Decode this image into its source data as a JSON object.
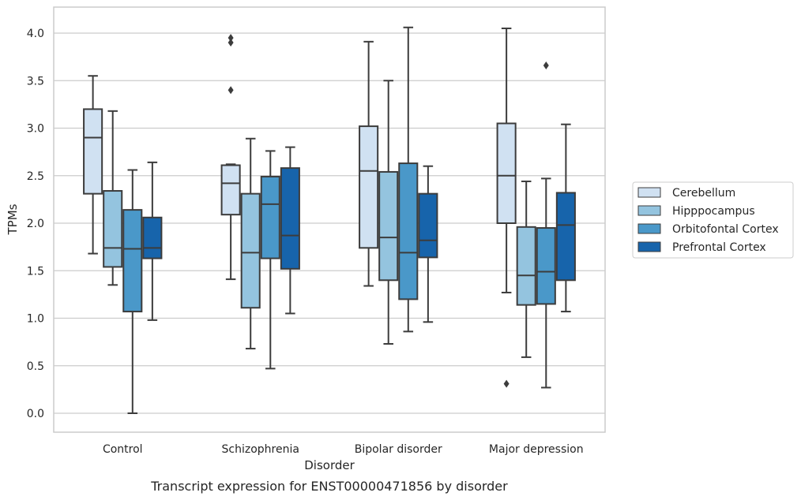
{
  "chart_data": {
    "type": "box",
    "categories": [
      "Control",
      "Schizophrenia",
      "Bipolar disorder",
      "Major depression"
    ],
    "xlabel": "Disorder",
    "ylabel": "TPMs",
    "caption": "Transcript expression for ENST00000471856 by disorder",
    "ylim": [
      -0.2,
      4.27
    ],
    "yticks": [
      "0.0",
      "0.5",
      "1.0",
      "1.5",
      "2.0",
      "2.5",
      "3.0",
      "3.5",
      "4.0"
    ],
    "grid": true,
    "legend_position": "right",
    "series": [
      {
        "name": "Cerebellum",
        "color": "#d0e1f2",
        "boxes": [
          {
            "whisker_low": 1.68,
            "q1": 2.31,
            "median": 2.9,
            "q3": 3.2,
            "whisker_high": 3.55,
            "outliers": []
          },
          {
            "whisker_low": 1.41,
            "q1": 2.09,
            "median": 2.42,
            "q3": 2.61,
            "whisker_high": 2.62,
            "outliers": [
              3.95,
              3.9,
              3.4
            ]
          },
          {
            "whisker_low": 1.34,
            "q1": 1.74,
            "median": 2.55,
            "q3": 3.02,
            "whisker_high": 3.91,
            "outliers": []
          },
          {
            "whisker_low": 1.27,
            "q1": 2.0,
            "median": 2.5,
            "q3": 3.05,
            "whisker_high": 4.05,
            "outliers": [
              0.31
            ]
          }
        ]
      },
      {
        "name": "Hipppocampus",
        "color": "#94c4df",
        "boxes": [
          {
            "whisker_low": 1.35,
            "q1": 1.54,
            "median": 1.74,
            "q3": 2.34,
            "whisker_high": 3.18,
            "outliers": []
          },
          {
            "whisker_low": 0.68,
            "q1": 1.11,
            "median": 1.69,
            "q3": 2.31,
            "whisker_high": 2.89,
            "outliers": []
          },
          {
            "whisker_low": 0.73,
            "q1": 1.4,
            "median": 1.85,
            "q3": 2.54,
            "whisker_high": 3.5,
            "outliers": []
          },
          {
            "whisker_low": 0.59,
            "q1": 1.14,
            "median": 1.45,
            "q3": 1.96,
            "whisker_high": 2.44,
            "outliers": []
          }
        ]
      },
      {
        "name": "Orbitofontal Cortex",
        "color": "#4a98c9",
        "boxes": [
          {
            "whisker_low": 0.0,
            "q1": 1.07,
            "median": 1.73,
            "q3": 2.14,
            "whisker_high": 2.56,
            "outliers": []
          },
          {
            "whisker_low": 0.47,
            "q1": 1.63,
            "median": 2.2,
            "q3": 2.49,
            "whisker_high": 2.76,
            "outliers": []
          },
          {
            "whisker_low": 0.86,
            "q1": 1.2,
            "median": 1.69,
            "q3": 2.63,
            "whisker_high": 4.06,
            "outliers": []
          },
          {
            "whisker_low": 0.27,
            "q1": 1.15,
            "median": 1.49,
            "q3": 1.95,
            "whisker_high": 2.47,
            "outliers": [
              3.66
            ]
          }
        ]
      },
      {
        "name": "Prefrontal Cortex",
        "color": "#1764ab",
        "boxes": [
          {
            "whisker_low": 0.98,
            "q1": 1.63,
            "median": 1.74,
            "q3": 2.06,
            "whisker_high": 2.64,
            "outliers": []
          },
          {
            "whisker_low": 1.05,
            "q1": 1.52,
            "median": 1.87,
            "q3": 2.58,
            "whisker_high": 2.8,
            "outliers": []
          },
          {
            "whisker_low": 0.96,
            "q1": 1.64,
            "median": 1.82,
            "q3": 2.31,
            "whisker_high": 2.6,
            "outliers": []
          },
          {
            "whisker_low": 1.07,
            "q1": 1.4,
            "median": 1.98,
            "q3": 2.32,
            "whisker_high": 3.04,
            "outliers": []
          }
        ]
      }
    ]
  }
}
